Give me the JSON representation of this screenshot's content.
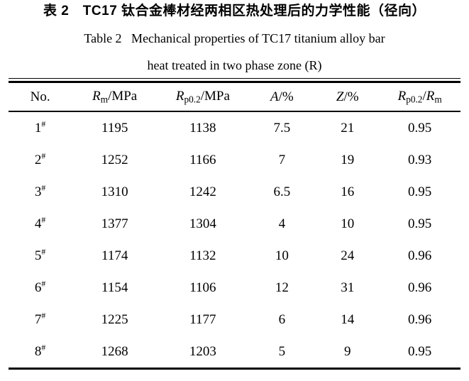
{
  "titles": {
    "chinese": "表 2　TC17 钛合金棒材经两相区热处理后的力学性能（径向）",
    "english_line1": "Table 2   Mechanical properties of TC17 titanium alloy bar",
    "english_line2": "heat treated in two phase zone (R)"
  },
  "colors": {
    "text": "#000000",
    "rule": "#000000",
    "background": "#ffffff"
  },
  "chart_data": {
    "type": "table",
    "title": "Table 2  Mechanical properties of TC17 titanium alloy bar heat treated in two phase zone (R)",
    "columns_plain": [
      "No.",
      "Rm/MPa",
      "Rp0.2/MPa",
      "A/%",
      "Z/%",
      "Rp0.2/Rm"
    ],
    "rows_plain": [
      [
        "1#",
        1195,
        1138,
        7.5,
        21,
        0.95
      ],
      [
        "2#",
        1252,
        1166,
        7,
        19,
        0.93
      ],
      [
        "3#",
        1310,
        1242,
        6.5,
        16,
        0.95
      ],
      [
        "4#",
        1377,
        1304,
        4,
        10,
        0.95
      ],
      [
        "5#",
        1174,
        1132,
        10,
        24,
        0.96
      ],
      [
        "6#",
        1154,
        1106,
        12,
        31,
        0.96
      ],
      [
        "7#",
        1225,
        1177,
        6,
        14,
        0.96
      ],
      [
        "8#",
        1268,
        1203,
        5,
        9,
        0.95
      ]
    ]
  },
  "table": {
    "no_suffix": "#",
    "columns": [
      {
        "name": "no",
        "parts": [
          {
            "t": "No."
          }
        ]
      },
      {
        "name": "rm-mpa",
        "parts": [
          {
            "t": "R",
            "s": "i"
          },
          {
            "t": "m",
            "s": "sub"
          },
          {
            "t": "/MPa"
          }
        ]
      },
      {
        "name": "rp02-mpa",
        "parts": [
          {
            "t": "R",
            "s": "i"
          },
          {
            "t": "p0.2",
            "s": "sub"
          },
          {
            "t": "/MPa"
          }
        ]
      },
      {
        "name": "a-pct",
        "parts": [
          {
            "t": "A",
            "s": "i"
          },
          {
            "t": "/%"
          }
        ]
      },
      {
        "name": "z-pct",
        "parts": [
          {
            "t": "Z",
            "s": "i"
          },
          {
            "t": "/%"
          }
        ]
      },
      {
        "name": "rp02-over-rm",
        "parts": [
          {
            "t": "R",
            "s": "i"
          },
          {
            "t": "p0.2",
            "s": "sub"
          },
          {
            "t": "/"
          },
          {
            "t": "R",
            "s": "i"
          },
          {
            "t": "m",
            "s": "sub"
          }
        ]
      }
    ],
    "rows": [
      {
        "no": "1",
        "values": [
          "1195",
          "1138",
          "7.5",
          "21",
          "0.95"
        ]
      },
      {
        "no": "2",
        "values": [
          "1252",
          "1166",
          "7",
          "19",
          "0.93"
        ]
      },
      {
        "no": "3",
        "values": [
          "1310",
          "1242",
          "6.5",
          "16",
          "0.95"
        ]
      },
      {
        "no": "4",
        "values": [
          "1377",
          "1304",
          "4",
          "10",
          "0.95"
        ]
      },
      {
        "no": "5",
        "values": [
          "1174",
          "1132",
          "10",
          "24",
          "0.96"
        ]
      },
      {
        "no": "6",
        "values": [
          "1154",
          "1106",
          "12",
          "31",
          "0.96"
        ]
      },
      {
        "no": "7",
        "values": [
          "1225",
          "1177",
          "6",
          "14",
          "0.96"
        ]
      },
      {
        "no": "8",
        "values": [
          "1268",
          "1203",
          "5",
          "9",
          "0.95"
        ]
      }
    ]
  }
}
